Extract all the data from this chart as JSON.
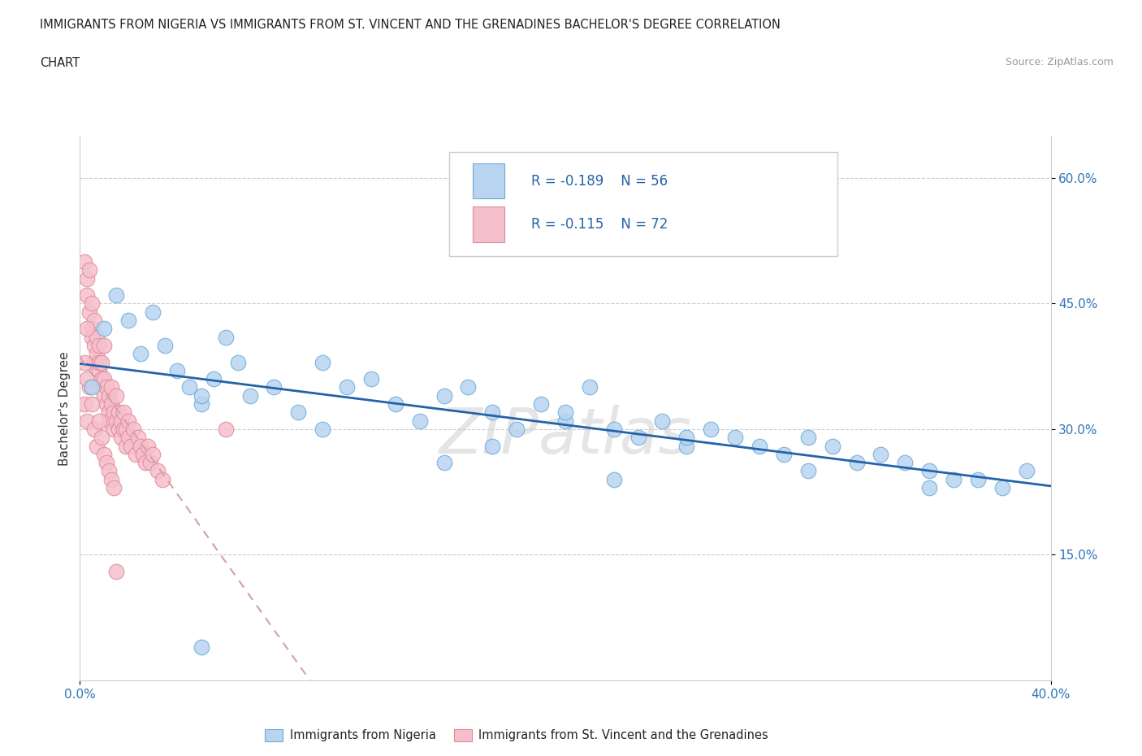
{
  "title_line1": "IMMIGRANTS FROM NIGERIA VS IMMIGRANTS FROM ST. VINCENT AND THE GRENADINES BACHELOR'S DEGREE CORRELATION",
  "title_line2": "CHART",
  "source_text": "Source: ZipAtlas.com",
  "ylabel": "Bachelor's Degree",
  "xlim": [
    0.0,
    0.4
  ],
  "ylim": [
    0.0,
    0.65
  ],
  "nigeria_color": "#b8d4f0",
  "nigeria_edge_color": "#6baad8",
  "svg_color": "#f5c0cc",
  "svg_edge_color": "#e08898",
  "trendline_nigeria_color": "#2563a8",
  "trendline_svg_color": "#d4a0a8",
  "legend_label_nigeria": "Immigrants from Nigeria",
  "legend_label_svg": "Immigrants from St. Vincent and the Grenadines",
  "R_nigeria": -0.189,
  "N_nigeria": 56,
  "R_svg": -0.115,
  "N_svg": 72,
  "watermark": "ZIPatlas",
  "nigeria_x": [
    0.005,
    0.01,
    0.015,
    0.02,
    0.025,
    0.03,
    0.035,
    0.04,
    0.045,
    0.05,
    0.055,
    0.06,
    0.065,
    0.07,
    0.08,
    0.09,
    0.1,
    0.11,
    0.12,
    0.13,
    0.14,
    0.15,
    0.16,
    0.17,
    0.18,
    0.19,
    0.2,
    0.21,
    0.22,
    0.23,
    0.24,
    0.25,
    0.26,
    0.27,
    0.28,
    0.29,
    0.3,
    0.31,
    0.32,
    0.33,
    0.34,
    0.35,
    0.36,
    0.37,
    0.38,
    0.39,
    0.05,
    0.1,
    0.15,
    0.2,
    0.25,
    0.3,
    0.35,
    0.17,
    0.22,
    0.05
  ],
  "nigeria_y": [
    0.35,
    0.42,
    0.46,
    0.43,
    0.39,
    0.44,
    0.4,
    0.37,
    0.35,
    0.33,
    0.36,
    0.41,
    0.38,
    0.34,
    0.35,
    0.32,
    0.38,
    0.35,
    0.36,
    0.33,
    0.31,
    0.34,
    0.35,
    0.32,
    0.3,
    0.33,
    0.31,
    0.35,
    0.3,
    0.29,
    0.31,
    0.28,
    0.3,
    0.29,
    0.28,
    0.27,
    0.29,
    0.28,
    0.26,
    0.27,
    0.26,
    0.25,
    0.24,
    0.24,
    0.23,
    0.25,
    0.34,
    0.3,
    0.26,
    0.32,
    0.29,
    0.25,
    0.23,
    0.28,
    0.24,
    0.04
  ],
  "svg_x": [
    0.002,
    0.003,
    0.003,
    0.004,
    0.004,
    0.005,
    0.005,
    0.005,
    0.006,
    0.006,
    0.006,
    0.007,
    0.007,
    0.008,
    0.008,
    0.008,
    0.009,
    0.009,
    0.01,
    0.01,
    0.01,
    0.011,
    0.011,
    0.012,
    0.012,
    0.012,
    0.013,
    0.013,
    0.014,
    0.014,
    0.015,
    0.015,
    0.016,
    0.016,
    0.017,
    0.017,
    0.018,
    0.018,
    0.019,
    0.019,
    0.02,
    0.02,
    0.021,
    0.022,
    0.023,
    0.024,
    0.025,
    0.026,
    0.027,
    0.028,
    0.029,
    0.03,
    0.032,
    0.034,
    0.002,
    0.003,
    0.004,
    0.005,
    0.006,
    0.007,
    0.008,
    0.009,
    0.01,
    0.011,
    0.012,
    0.013,
    0.014,
    0.015,
    0.002,
    0.003,
    0.003,
    0.06
  ],
  "svg_y": [
    0.5,
    0.48,
    0.46,
    0.49,
    0.44,
    0.42,
    0.45,
    0.41,
    0.4,
    0.43,
    0.38,
    0.41,
    0.39,
    0.37,
    0.4,
    0.38,
    0.36,
    0.38,
    0.34,
    0.36,
    0.4,
    0.33,
    0.35,
    0.32,
    0.34,
    0.31,
    0.33,
    0.35,
    0.3,
    0.32,
    0.31,
    0.34,
    0.3,
    0.32,
    0.31,
    0.29,
    0.3,
    0.32,
    0.28,
    0.3,
    0.29,
    0.31,
    0.28,
    0.3,
    0.27,
    0.29,
    0.28,
    0.27,
    0.26,
    0.28,
    0.26,
    0.27,
    0.25,
    0.24,
    0.33,
    0.31,
    0.35,
    0.33,
    0.3,
    0.28,
    0.31,
    0.29,
    0.27,
    0.26,
    0.25,
    0.24,
    0.23,
    0.13,
    0.38,
    0.36,
    0.42,
    0.3
  ]
}
